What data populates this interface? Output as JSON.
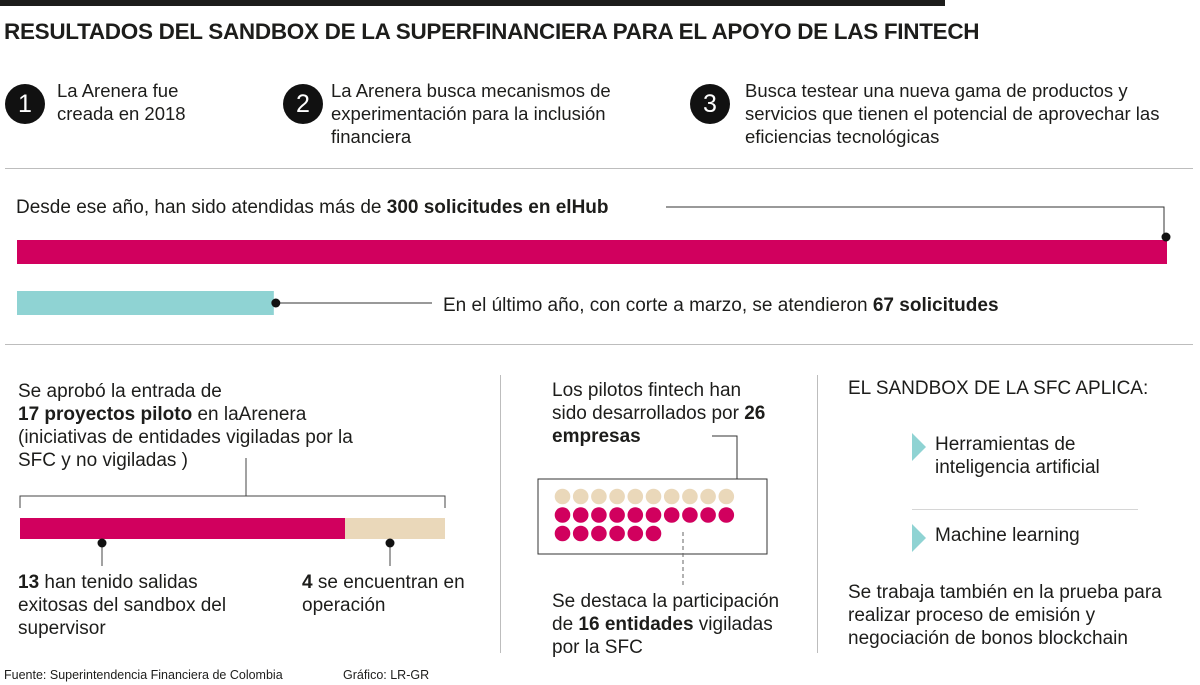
{
  "title": "RESULTADOS DEL SANDBOX DE LA SUPERFINANCIERA PARA EL APOYO DE LAS FINTECH",
  "steps": [
    {
      "number": "1",
      "text": "La Arenera fue creada en 2018"
    },
    {
      "number": "2",
      "text": "La Arenera busca mecanismos de experimentación para la inclusión financiera"
    },
    {
      "number": "3",
      "text": "Busca testear una nueva gama de productos y servicios que tienen el potencial de aprovechar las eficiencias tecnológicas"
    }
  ],
  "requests": {
    "total_prefix": "Desde ese año, han sido atendidas más de ",
    "total_bold": "300 solicitudes en elHub",
    "last_prefix": "En el último año, con corte a marzo, se atendieron ",
    "last_bold": "67 solicitudes"
  },
  "pilots": {
    "intro_prefix": "Se aprobó la entrada de",
    "intro_bold": "17 proyectos piloto",
    "intro_suffix": " en laArenera",
    "intro_rest": "(iniciativas de entidades vigiladas por la SFC y no vigiladas )",
    "exited_bold": "13",
    "exited_text": " han tenido salidas exitosas del sandbox del supervisor",
    "operating_bold": "4",
    "operating_text": " se encuentran en operación"
  },
  "companies": {
    "text_prefix": "Los pilotos fintech han sido desarrollados por ",
    "text_bold": "26 empresas",
    "note_prefix": "Se destaca la participación de ",
    "note_bold": "16 entidades",
    "note_suffix": " vigiladas por la SFC"
  },
  "applies": {
    "heading": "EL SANDBOX DE LA SFC APLICA:",
    "items": [
      "Herramientas de inteligencia artificial",
      "Machine learning"
    ],
    "note": "Se trabaja también en la prueba para realizar proceso de emisión y negociación de bonos blockchain"
  },
  "footer": {
    "source": "Fuente: Superintendencia Financiera de Colombia",
    "credit": "Gráfico: LR-GR"
  },
  "colors": {
    "primary": "#d1005e",
    "secondary": "#8fd3d3",
    "beige": "#ead8ba",
    "dark": "#1d1d1b"
  },
  "chart_data": [
    {
      "type": "bar",
      "categories": [
        "Desde 2018",
        "Último año (corte a marzo)"
      ],
      "values": [
        300,
        67
      ],
      "title": "",
      "xlabel": "",
      "ylabel": ""
    },
    {
      "type": "bar",
      "stacked": true,
      "categories": [
        "Proyectos piloto"
      ],
      "series": [
        {
          "values": [
            13
          ]
        },
        {
          "values": [
            4
          ]
        }
      ],
      "total": 17
    },
    {
      "type": "dot",
      "categories": [
        "Empresas"
      ],
      "series": [
        {
          "values": [
            16
          ]
        },
        {
          "values": [
            10
          ]
        }
      ],
      "total": 26
    }
  ]
}
